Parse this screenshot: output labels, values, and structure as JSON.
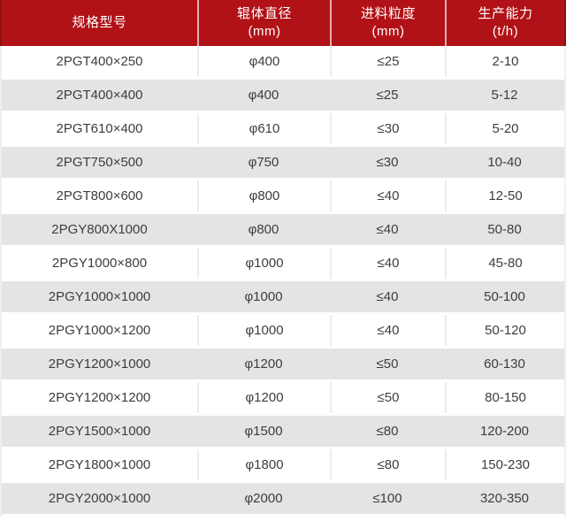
{
  "colors": {
    "header_bg": "#b11217",
    "header_edge": "#8f0e12",
    "header_text": "#ffffff",
    "row_bg": "#ffffff",
    "row_alt_bg": "#e4e4e4",
    "cell_text": "#3d3d3d",
    "grid_line": "#ececec"
  },
  "chart_data": {
    "type": "table",
    "columns": [
      {
        "label": "规格型号",
        "unit": ""
      },
      {
        "label": "辊体直径",
        "unit": "(mm)"
      },
      {
        "label": "进料粒度",
        "unit": "(mm)"
      },
      {
        "label": "生产能力",
        "unit": "(t/h)"
      }
    ],
    "rows": [
      [
        "2PGT400×250",
        "φ400",
        "≤25",
        "2-10"
      ],
      [
        "2PGT400×400",
        "φ400",
        "≤25",
        "5-12"
      ],
      [
        "2PGT610×400",
        "φ610",
        "≤30",
        "5-20"
      ],
      [
        "2PGT750×500",
        "φ750",
        "≤30",
        "10-40"
      ],
      [
        "2PGT800×600",
        "φ800",
        "≤40",
        "12-50"
      ],
      [
        "2PGY800X1000",
        "φ800",
        "≤40",
        "50-80"
      ],
      [
        "2PGY1000×800",
        "φ1000",
        "≤40",
        "45-80"
      ],
      [
        "2PGY1000×1000",
        "φ1000",
        "≤40",
        "50-100"
      ],
      [
        "2PGY1000×1200",
        "φ1000",
        "≤40",
        "50-120"
      ],
      [
        "2PGY1200×1000",
        "φ1200",
        "≤50",
        "60-130"
      ],
      [
        "2PGY1200×1200",
        "φ1200",
        "≤50",
        "80-150"
      ],
      [
        "2PGY1500×1000",
        "φ1500",
        "≤80",
        "120-200"
      ],
      [
        "2PGY1800×1000",
        "φ1800",
        "≤80",
        "150-230"
      ],
      [
        "2PGY2000×1000",
        "φ2000",
        "≤100",
        "320-350"
      ]
    ]
  }
}
